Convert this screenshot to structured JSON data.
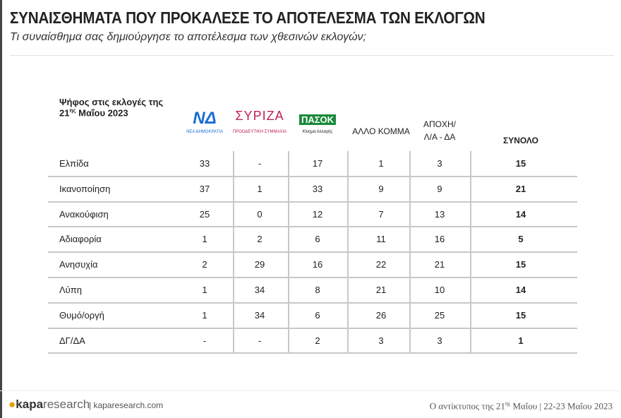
{
  "header": {
    "title": "ΣΥΝΑΙΣΘΗΜΑΤΑ ΠΟΥ ΠΡΟΚΑΛΕΣΕ ΤΟ ΑΠΟΤΕΛΕΣΜΑ ΤΩΝ ΕΚΛΟΓΩΝ",
    "subtitle": "Τι συναίσθημα σας δημιούργησε το αποτέλεσμα των χθεσινών εκλογών;"
  },
  "table": {
    "caption": {
      "line1": "Ψήφος στις εκλογές της",
      "day": "21",
      "suffix": "ης",
      "rest": " Μαΐου 2023"
    },
    "columns": [
      {
        "logo": "ΝΔ",
        "sub": "ΝΕΑ ΔΗΜΟΚΡΑΤΙΑ"
      },
      {
        "logo": "ΣΥΡΙΖΑ",
        "sub": "ΠΡΟΟΔΕΥΤΙΚΗ ΣΥΜΜΑΧΙΑ"
      },
      {
        "logo": "ΠΑΣΟΚ",
        "sub": "Κίνημα Αλλαγής"
      },
      {
        "label": "ΑΛΛΟ ΚΟΜΜΑ"
      },
      {
        "label": "ΑΠΟΧΗ/ Λ/Α - ΔΑ"
      },
      {
        "label": "ΣΥΝΟΛΟ"
      }
    ],
    "rows": [
      {
        "label": "Ελπίδα",
        "values": [
          33,
          "-",
          17,
          1,
          3,
          15
        ]
      },
      {
        "label": "Ικανοποίηση",
        "values": [
          37,
          1,
          33,
          9,
          9,
          21
        ]
      },
      {
        "label": "Ανακούφιση",
        "values": [
          25,
          0,
          12,
          7,
          13,
          14
        ]
      },
      {
        "label": "Αδιαφορία",
        "values": [
          1,
          2,
          6,
          11,
          16,
          5
        ]
      },
      {
        "label": "Ανησυχία",
        "values": [
          2,
          29,
          16,
          22,
          21,
          15
        ]
      },
      {
        "label": "Λύπη",
        "values": [
          1,
          34,
          8,
          21,
          10,
          14
        ]
      },
      {
        "label": "Θυμό/οργή",
        "values": [
          1,
          34,
          6,
          26,
          25,
          15
        ]
      },
      {
        "label": "ΔΓ/ΔΑ",
        "values": [
          "-",
          "-",
          2,
          3,
          3,
          1
        ]
      }
    ]
  },
  "footer": {
    "brand1": "kapa",
    "brand2": "research",
    "site": "kaparesearch.com",
    "left": "Ο αντίκτυπος της 21",
    "suffix": "ης",
    "right": " Μαΐου | 22-23 Μαΐου 2023"
  }
}
